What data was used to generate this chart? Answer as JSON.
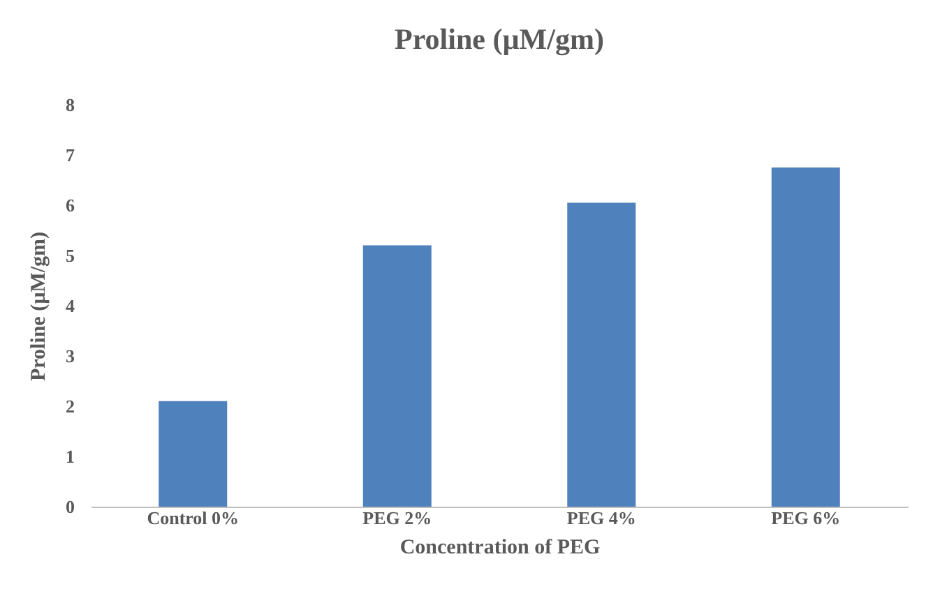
{
  "chart_data": {
    "type": "bar",
    "title": "Proline   (µM/gm)",
    "xlabel": "Concentration of PEG",
    "ylabel": "Proline   (µM/gm)",
    "categories": [
      "Control 0%",
      "PEG 2%",
      "PEG 4%",
      "PEG 6%"
    ],
    "values": [
      2.1,
      5.2,
      6.05,
      6.75
    ],
    "color": "#4f81bd",
    "ylim": [
      0,
      8
    ],
    "yticks": [
      0,
      1,
      2,
      3,
      4,
      5,
      6,
      7,
      8
    ],
    "grid": false
  }
}
